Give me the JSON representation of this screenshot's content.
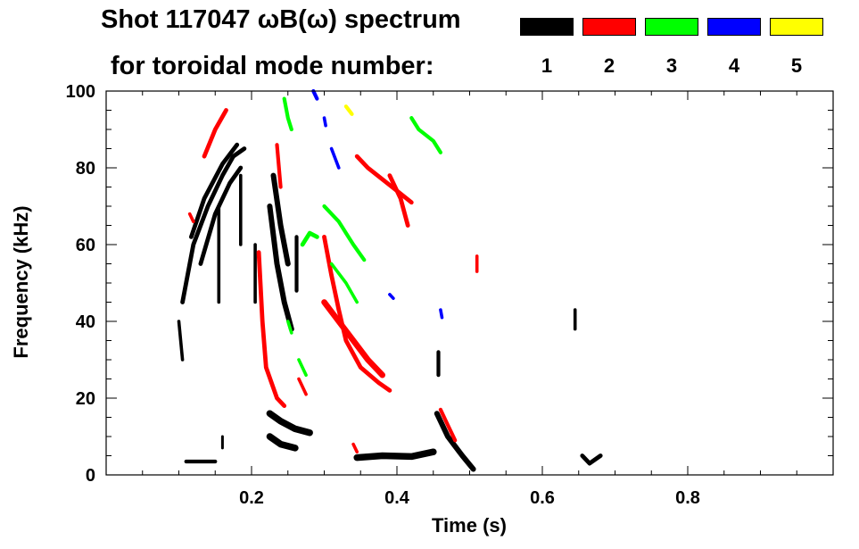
{
  "chart_data": {
    "type": "heatmap",
    "title": "Shot 117047 ωB(ω) spectrum",
    "subtitle": "for toroidal mode number:",
    "xlabel": "Time (s)",
    "ylabel": "Frequency (kHz)",
    "xlim": [
      0.0,
      1.0
    ],
    "ylim": [
      0,
      100
    ],
    "xticks": [
      0.2,
      0.4,
      0.6,
      0.8
    ],
    "xtick_labels": [
      "0.2",
      "0.4",
      "0.6",
      "0.8"
    ],
    "yticks": [
      0,
      20,
      40,
      60,
      80,
      100
    ],
    "ytick_labels": [
      "0",
      "20",
      "40",
      "60",
      "80",
      "100"
    ],
    "grid": false,
    "legend_position": "top-right",
    "modes": [
      {
        "label": "1",
        "color": "#000000"
      },
      {
        "label": "2",
        "color": "#ff0000"
      },
      {
        "label": "3",
        "color": "#00ff00"
      },
      {
        "label": "4",
        "color": "#0000ff"
      },
      {
        "label": "5",
        "color": "#ffff00"
      }
    ],
    "series": [
      {
        "mode": "1",
        "strokes": [
          {
            "w": 1.6,
            "p": [
              [
                0.105,
                45
              ],
              [
                0.12,
                60
              ],
              [
                0.14,
                70
              ],
              [
                0.16,
                78
              ],
              [
                0.175,
                83
              ],
              [
                0.19,
                85
              ]
            ]
          },
          {
            "w": 1.6,
            "p": [
              [
                0.13,
                55
              ],
              [
                0.15,
                68
              ],
              [
                0.17,
                76
              ],
              [
                0.185,
                80
              ]
            ]
          },
          {
            "w": 1.6,
            "p": [
              [
                0.117,
                62
              ],
              [
                0.135,
                72
              ],
              [
                0.16,
                81
              ],
              [
                0.18,
                86
              ]
            ]
          },
          {
            "w": 1.2,
            "p": [
              [
                0.1,
                40
              ],
              [
                0.105,
                30
              ]
            ]
          },
          {
            "w": 1.2,
            "p": [
              [
                0.155,
                70
              ],
              [
                0.155,
                45
              ]
            ]
          },
          {
            "w": 1.2,
            "p": [
              [
                0.185,
                78
              ],
              [
                0.185,
                60
              ]
            ]
          },
          {
            "w": 1.2,
            "p": [
              [
                0.205,
                60
              ],
              [
                0.205,
                45
              ]
            ]
          },
          {
            "w": 2.0,
            "p": [
              [
                0.225,
                70
              ],
              [
                0.235,
                55
              ],
              [
                0.245,
                45
              ],
              [
                0.255,
                38
              ]
            ]
          },
          {
            "w": 2.0,
            "p": [
              [
                0.23,
                78
              ],
              [
                0.24,
                65
              ],
              [
                0.25,
                55
              ]
            ]
          },
          {
            "w": 1.4,
            "p": [
              [
                0.262,
                62
              ],
              [
                0.262,
                48
              ]
            ]
          },
          {
            "w": 2.5,
            "p": [
              [
                0.225,
                16
              ],
              [
                0.24,
                14
              ],
              [
                0.26,
                12
              ],
              [
                0.28,
                11
              ]
            ]
          },
          {
            "w": 2.5,
            "p": [
              [
                0.225,
                10
              ],
              [
                0.24,
                8
              ],
              [
                0.26,
                7
              ]
            ]
          },
          {
            "w": 1.4,
            "p": [
              [
                0.11,
                3.5
              ],
              [
                0.15,
                3.5
              ]
            ]
          },
          {
            "w": 1.0,
            "p": [
              [
                0.16,
                10
              ],
              [
                0.16,
                7
              ]
            ]
          },
          {
            "w": 2.5,
            "p": [
              [
                0.345,
                4.5
              ],
              [
                0.38,
                5
              ],
              [
                0.42,
                4.8
              ],
              [
                0.45,
                6
              ]
            ]
          },
          {
            "w": 2.0,
            "p": [
              [
                0.455,
                16
              ],
              [
                0.47,
                10
              ],
              [
                0.49,
                5
              ],
              [
                0.505,
                1.5
              ]
            ]
          },
          {
            "w": 1.4,
            "p": [
              [
                0.457,
                32
              ],
              [
                0.457,
                26
              ]
            ]
          },
          {
            "w": 1.2,
            "p": [
              [
                0.645,
                43
              ],
              [
                0.645,
                38
              ]
            ]
          },
          {
            "w": 1.6,
            "p": [
              [
                0.655,
                5
              ],
              [
                0.665,
                3
              ],
              [
                0.68,
                5
              ]
            ]
          }
        ]
      },
      {
        "mode": "2",
        "strokes": [
          {
            "w": 1.6,
            "p": [
              [
                0.135,
                83
              ],
              [
                0.15,
                90
              ],
              [
                0.165,
                95
              ]
            ]
          },
          {
            "w": 1.2,
            "p": [
              [
                0.115,
                68
              ],
              [
                0.12,
                66
              ]
            ]
          },
          {
            "w": 1.6,
            "p": [
              [
                0.21,
                58
              ],
              [
                0.215,
                40
              ],
              [
                0.22,
                28
              ],
              [
                0.235,
                20
              ],
              [
                0.245,
                18
              ]
            ]
          },
          {
            "w": 1.4,
            "p": [
              [
                0.235,
                86
              ],
              [
                0.24,
                75
              ]
            ]
          },
          {
            "w": 1.2,
            "p": [
              [
                0.265,
                25
              ],
              [
                0.275,
                21
              ]
            ]
          },
          {
            "w": 1.6,
            "p": [
              [
                0.3,
                62
              ],
              [
                0.31,
                52
              ],
              [
                0.32,
                43
              ],
              [
                0.33,
                35
              ],
              [
                0.35,
                28
              ],
              [
                0.375,
                24
              ],
              [
                0.39,
                22
              ]
            ]
          },
          {
            "w": 2.2,
            "p": [
              [
                0.3,
                45
              ],
              [
                0.32,
                40
              ],
              [
                0.34,
                35
              ],
              [
                0.36,
                30
              ],
              [
                0.38,
                26
              ]
            ]
          },
          {
            "w": 1.6,
            "p": [
              [
                0.345,
                83
              ],
              [
                0.36,
                80
              ],
              [
                0.38,
                77
              ],
              [
                0.4,
                74
              ],
              [
                0.42,
                71
              ]
            ]
          },
          {
            "w": 1.6,
            "p": [
              [
                0.39,
                78
              ],
              [
                0.405,
                72
              ],
              [
                0.415,
                65
              ]
            ]
          },
          {
            "w": 1.4,
            "p": [
              [
                0.46,
                17
              ],
              [
                0.47,
                13
              ],
              [
                0.48,
                9
              ]
            ]
          },
          {
            "w": 1.2,
            "p": [
              [
                0.51,
                57
              ],
              [
                0.51,
                53
              ]
            ]
          },
          {
            "w": 1.2,
            "p": [
              [
                0.34,
                8
              ],
              [
                0.345,
                6
              ]
            ]
          }
        ]
      },
      {
        "mode": "3",
        "strokes": [
          {
            "w": 1.4,
            "p": [
              [
                0.245,
                98
              ],
              [
                0.25,
                93
              ],
              [
                0.255,
                90
              ]
            ]
          },
          {
            "w": 1.4,
            "p": [
              [
                0.3,
                70
              ],
              [
                0.31,
                68
              ],
              [
                0.32,
                66
              ],
              [
                0.33,
                63
              ],
              [
                0.34,
                60
              ],
              [
                0.355,
                56
              ]
            ]
          },
          {
            "w": 1.6,
            "p": [
              [
                0.27,
                60
              ],
              [
                0.28,
                63
              ],
              [
                0.29,
                62
              ]
            ]
          },
          {
            "w": 1.2,
            "p": [
              [
                0.31,
                55
              ],
              [
                0.33,
                50
              ],
              [
                0.345,
                45
              ]
            ]
          },
          {
            "w": 1.4,
            "p": [
              [
                0.42,
                93
              ],
              [
                0.43,
                90
              ],
              [
                0.45,
                87
              ],
              [
                0.46,
                84
              ]
            ]
          },
          {
            "w": 1.2,
            "p": [
              [
                0.265,
                30
              ],
              [
                0.275,
                26
              ]
            ]
          },
          {
            "w": 1.2,
            "p": [
              [
                0.25,
                40
              ],
              [
                0.255,
                37
              ]
            ]
          }
        ]
      },
      {
        "mode": "4",
        "strokes": [
          {
            "w": 1.4,
            "p": [
              [
                0.285,
                100
              ],
              [
                0.29,
                98
              ]
            ]
          },
          {
            "w": 1.2,
            "p": [
              [
                0.3,
                93
              ],
              [
                0.302,
                91
              ]
            ]
          },
          {
            "w": 1.2,
            "p": [
              [
                0.31,
                85
              ],
              [
                0.32,
                80
              ]
            ]
          },
          {
            "w": 1.2,
            "p": [
              [
                0.39,
                47
              ],
              [
                0.395,
                46
              ]
            ]
          },
          {
            "w": 1.2,
            "p": [
              [
                0.46,
                43
              ],
              [
                0.462,
                41
              ]
            ]
          }
        ]
      },
      {
        "mode": "5",
        "strokes": [
          {
            "w": 1.4,
            "p": [
              [
                0.33,
                96
              ],
              [
                0.338,
                94
              ]
            ]
          }
        ]
      }
    ]
  }
}
